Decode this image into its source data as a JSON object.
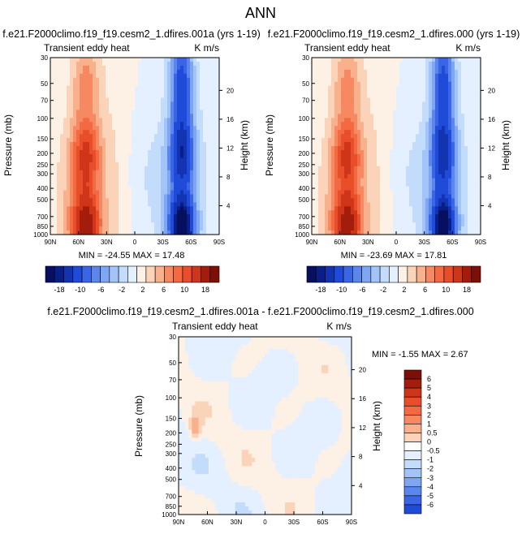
{
  "figure_title": "ANN",
  "colors": {
    "positive_scale": [
      "#fdf0e4",
      "#fbd3b8",
      "#f9b08c",
      "#f78962",
      "#f36a42",
      "#e84e2a",
      "#cf3518",
      "#a41d0c",
      "#7e0f06"
    ],
    "negative_scale": [
      "#e4efff",
      "#c4dcfb",
      "#a3c4f8",
      "#7ea6f3",
      "#5b86ee",
      "#3a66e6",
      "#1f4bd8",
      "#1234b2",
      "#0a1e88",
      "#060f60"
    ]
  },
  "chart_data": [
    {
      "type": "contour",
      "title": "f.e21.F2000climo.f19_f19.cesm2_1.dfires.001a (yrs 1-19)",
      "left_label": "Transient eddy heat",
      "right_label": "K m/s",
      "min_max_text": "MIN = -24.55   MAX =  17.48",
      "min": -24.55,
      "max": 17.48,
      "xlabel": "",
      "ylabel": "Pressure (mb)",
      "y2label": "Height (km)",
      "x_ticks": [
        "90N",
        "60N",
        "30N",
        "0",
        "30S",
        "60S",
        "90S"
      ],
      "y_ticks": [
        "30",
        "50",
        "70",
        "100",
        "150",
        "200",
        "250",
        "300",
        "400",
        "500",
        "700",
        "850",
        "1000"
      ],
      "y2_ticks": [
        "20",
        "16",
        "12",
        "8",
        "4"
      ],
      "colorbar_labels": [
        "-18",
        "-10",
        "-6",
        "-2",
        "2",
        "6",
        "10",
        "18"
      ],
      "contour_levels": [
        -22,
        -20,
        -18,
        -15,
        -12,
        -10,
        -8,
        -6,
        -4,
        -2,
        0,
        2,
        4,
        6,
        8,
        10,
        12,
        15,
        18,
        20
      ]
    },
    {
      "type": "contour",
      "title": "f.e21.F2000climo.f19_f19.cesm2_1.dfires.000 (yrs 1-19)",
      "left_label": "Transient eddy heat",
      "right_label": "K m/s",
      "min_max_text": "MIN = -23.69   MAX =  17.81",
      "min": -23.69,
      "max": 17.81,
      "xlabel": "",
      "ylabel": "Pressure (mb)",
      "y2label": "Height (km)",
      "x_ticks": [
        "90N",
        "60N",
        "30N",
        "0",
        "30S",
        "60S",
        "90S"
      ],
      "y_ticks": [
        "30",
        "50",
        "70",
        "100",
        "150",
        "200",
        "250",
        "300",
        "400",
        "500",
        "700",
        "850",
        "1000"
      ],
      "y2_ticks": [
        "20",
        "16",
        "12",
        "8",
        "4"
      ],
      "colorbar_labels": [
        "-18",
        "-10",
        "-6",
        "-2",
        "2",
        "6",
        "10",
        "18"
      ],
      "contour_levels": [
        -22,
        -20,
        -18,
        -15,
        -12,
        -10,
        -8,
        -6,
        -4,
        -2,
        0,
        2,
        4,
        6,
        8,
        10,
        12,
        15,
        18,
        20
      ]
    },
    {
      "type": "contour",
      "title": "f.e21.F2000climo.f19_f19.cesm2_1.dfires.001a - f.e21.F2000climo.f19_f19.cesm2_1.dfires.000",
      "left_label": "Transient eddy heat",
      "right_label": "K m/s",
      "min_max_text": "MIN = -1.55  MAX =  2.67",
      "min": -1.55,
      "max": 2.67,
      "xlabel": "",
      "ylabel": "Pressure (mb)",
      "y2label": "Height (km)",
      "x_ticks": [
        "90N",
        "60N",
        "30N",
        "0",
        "30S",
        "60S",
        "90S"
      ],
      "y_ticks": [
        "30",
        "50",
        "70",
        "100",
        "150",
        "200",
        "250",
        "300",
        "400",
        "500",
        "700",
        "850",
        "1000"
      ],
      "y2_ticks": [
        "20",
        "16",
        "12",
        "8",
        "4"
      ],
      "colorbar_labels": [
        "6",
        "5",
        "4",
        "3",
        "2",
        "1",
        "0.5",
        "0",
        "-0.5",
        "-1",
        "-2",
        "-3",
        "-4",
        "-5",
        "-6"
      ],
      "contour_levels": [
        -6,
        -5,
        -4,
        -3,
        -2,
        -1,
        -0.5,
        0,
        0.5,
        1,
        2,
        3,
        4,
        5,
        6
      ]
    }
  ]
}
